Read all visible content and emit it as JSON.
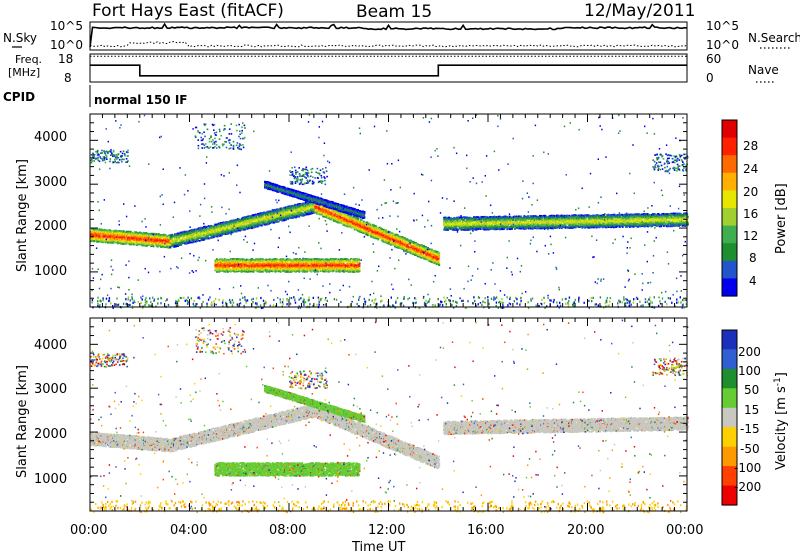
{
  "header": {
    "title": "Fort Hays East (fitACF)",
    "beam": "Beam 15",
    "date": "12/May/2011"
  },
  "noise_panel": {
    "left_label": "N.Sky",
    "right_label": "N.Search",
    "ticks_left": [
      "10^5",
      "10^0"
    ],
    "ticks_right": [
      "10^5",
      "10^0"
    ]
  },
  "freq_panel": {
    "left_label_line1": "Freq.",
    "left_label_line2": "[MHz]",
    "right_label": "Nave",
    "ticks_left": [
      "18",
      "8"
    ],
    "ticks_right": [
      "60",
      "0"
    ],
    "freq_steps": [
      {
        "t0": 0,
        "t1": 2,
        "mhz": 14
      },
      {
        "t0": 2,
        "t1": 14,
        "mhz": 10.2
      },
      {
        "t0": 14,
        "t1": 24,
        "mhz": 14
      }
    ],
    "nave_level": 55
  },
  "cpid": {
    "label": "CPID",
    "mode": "normal 150 IF"
  },
  "power_panel": {
    "ylabel": "Slant Range [km]",
    "yticks": [
      "1000",
      "2000",
      "3000",
      "4000"
    ],
    "colorbar_label": "Power [dB]",
    "colorbar_ticks": [
      "4",
      "8",
      "12",
      "16",
      "20",
      "24",
      "28"
    ],
    "colors": [
      "#0000ee",
      "#2255cc",
      "#1f8e2e",
      "#3fae4f",
      "#9fd02f",
      "#e6e600",
      "#ffb000",
      "#ff6a00",
      "#ff2000",
      "#e00000"
    ]
  },
  "velocity_panel": {
    "ylabel": "Slant Range [km]",
    "yticks": [
      "1000",
      "2000",
      "3000",
      "4000"
    ],
    "colorbar_label": "Velocity [m s-1]",
    "colorbar_ticks": [
      "200",
      "100",
      "50",
      "15",
      "-15",
      "-50",
      "-100",
      "-200"
    ],
    "colors": [
      "#1a2fbb",
      "#2f5fd0",
      "#1f8e2e",
      "#66cc33",
      "#c8c8c0",
      "#ffd000",
      "#ff9900",
      "#ff4000",
      "#ee0000"
    ]
  },
  "xaxis": {
    "label": "Time UT",
    "ticks": [
      "00:00",
      "04:00",
      "08:00",
      "12:00",
      "16:00",
      "20:00",
      "00:00"
    ]
  },
  "chart_data": {
    "type": "heatmap",
    "x_range_hours": [
      0,
      24
    ],
    "y_range_km": [
      180,
      4600
    ],
    "bands": [
      {
        "name": "main-band-a",
        "t0": 0,
        "t1": 3.2,
        "r0": 1850,
        "r1": 1700,
        "intensity": "high",
        "vel": "-15"
      },
      {
        "name": "main-band-b",
        "t0": 3.2,
        "t1": 9,
        "r0": 1700,
        "r1": 2500,
        "intensity": "mid",
        "vel": "-15"
      },
      {
        "name": "main-band-c",
        "t0": 9,
        "t1": 14,
        "r0": 2500,
        "r1": 1300,
        "intensity": "high",
        "vel": "-15"
      },
      {
        "name": "main-band-d",
        "t0": 14.2,
        "t1": 24,
        "r0": 2100,
        "r1": 2200,
        "intensity": "mid",
        "vel": "-15"
      },
      {
        "name": "lower-echo",
        "t0": 5,
        "t1": 10.8,
        "r0": 1150,
        "r1": 1150,
        "intensity": "high",
        "vel": "15"
      },
      {
        "name": "upper-arc",
        "t0": 7,
        "t1": 11,
        "r0": 3000,
        "r1": 2300,
        "intensity": "low",
        "vel": "15"
      }
    ]
  }
}
